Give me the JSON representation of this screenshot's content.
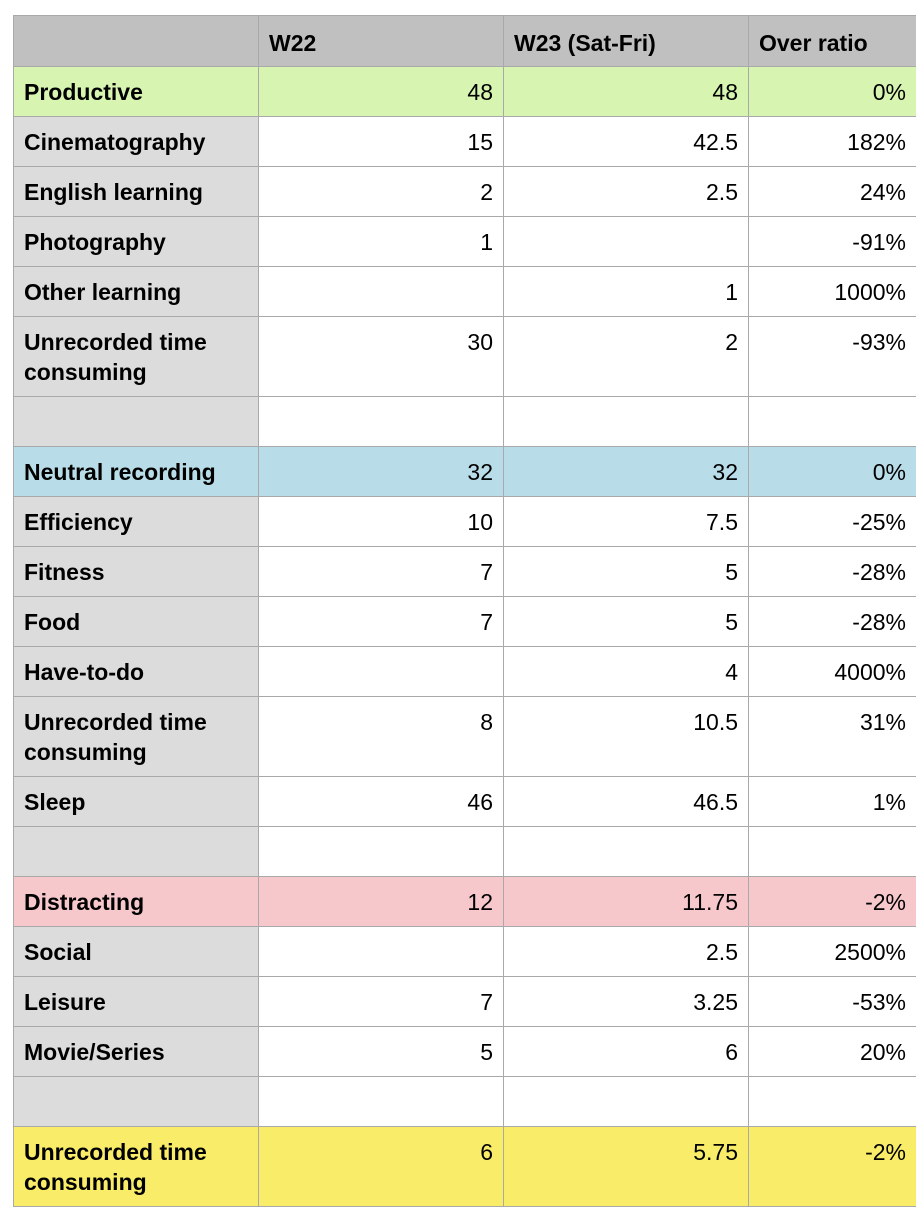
{
  "colors": {
    "header": "#c0c0c0",
    "label_column": "#dcdcdc",
    "productive": "#d7f5b0",
    "neutral": "#b8dde8",
    "distracting": "#f6c8cc",
    "unrecorded": "#f9ec68",
    "selection": "#e8902a",
    "grid": "#a9a9a9"
  },
  "headers": [
    "",
    "W22",
    "W23 (Sat-Fri)",
    "Over ratio"
  ],
  "rows": [
    {
      "type": "cat-productive",
      "label": "Productive",
      "w22": "48",
      "w23": "48",
      "ratio": "0%"
    },
    {
      "type": "item",
      "label": "Cinematography",
      "w22": "15",
      "w23": "42.5",
      "ratio": "182%",
      "selected": true
    },
    {
      "type": "item",
      "label": "English learning",
      "w22": "2",
      "w23": "2.5",
      "ratio": "24%"
    },
    {
      "type": "item",
      "label": "Photography",
      "w22": "1",
      "w23": "",
      "ratio": "-91%"
    },
    {
      "type": "item",
      "label": "Other learning",
      "w22": "",
      "w23": "1",
      "ratio": "1000%"
    },
    {
      "type": "tall",
      "label": "Unrecorded time consuming",
      "w22": "30",
      "w23": "2",
      "ratio": "-93%"
    },
    {
      "type": "blank",
      "label": "",
      "w22": "",
      "w23": "",
      "ratio": ""
    },
    {
      "type": "cat-neutral",
      "label": "Neutral recording",
      "w22": "32",
      "w23": "32",
      "ratio": "0%"
    },
    {
      "type": "item",
      "label": "Efficiency",
      "w22": "10",
      "w23": "7.5",
      "ratio": "-25%"
    },
    {
      "type": "item",
      "label": "Fitness",
      "w22": "7",
      "w23": "5",
      "ratio": "-28%"
    },
    {
      "type": "item",
      "label": "Food",
      "w22": "7",
      "w23": "5",
      "ratio": "-28%"
    },
    {
      "type": "item",
      "label": "Have-to-do",
      "w22": "",
      "w23": "4",
      "ratio": "4000%"
    },
    {
      "type": "tall",
      "label": "Unrecorded time consuming",
      "w22": "8",
      "w23": "10.5",
      "ratio": "31%"
    },
    {
      "type": "item",
      "label": "Sleep",
      "w22": "46",
      "w23": "46.5",
      "ratio": "1%"
    },
    {
      "type": "blank",
      "label": "",
      "w22": "",
      "w23": "",
      "ratio": ""
    },
    {
      "type": "cat-distracting",
      "label": "Distracting",
      "w22": "12",
      "w23": "11.75",
      "ratio": "-2%"
    },
    {
      "type": "item",
      "label": "Social",
      "w22": "",
      "w23": "2.5",
      "ratio": "2500%"
    },
    {
      "type": "item",
      "label": "Leisure",
      "w22": "7",
      "w23": "3.25",
      "ratio": "-53%"
    },
    {
      "type": "item",
      "label": "Movie/Series",
      "w22": "5",
      "w23": "6",
      "ratio": "20%"
    },
    {
      "type": "blank",
      "label": "",
      "w22": "",
      "w23": "",
      "ratio": ""
    },
    {
      "type": "cat-unrecorded",
      "label": "Unrecorded time consuming",
      "w22": "6",
      "w23": "5.75",
      "ratio": "-2%"
    }
  ]
}
